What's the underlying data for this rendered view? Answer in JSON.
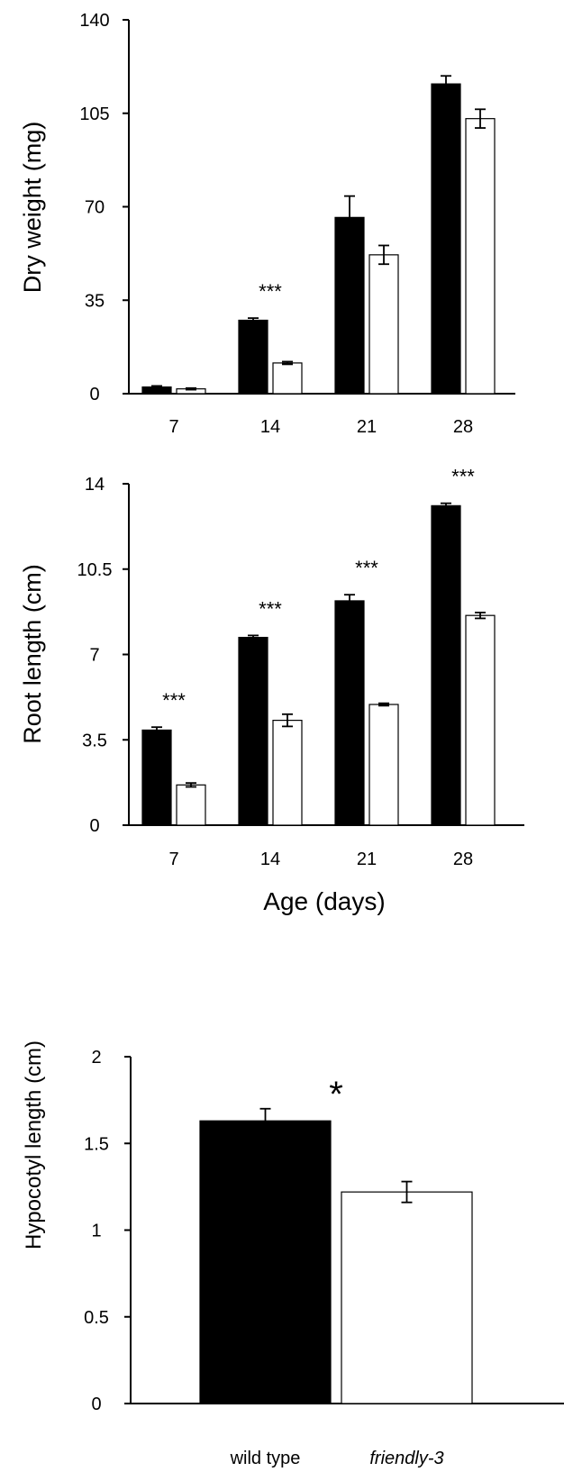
{
  "colors": {
    "series_1": "#000000",
    "series_2": "#ffffff",
    "outline": "#000000"
  },
  "chart_data": [
    {
      "type": "bar",
      "categories": [
        "7",
        "14",
        "21",
        "28"
      ],
      "series": [
        {
          "values": [
            2.5,
            27.5,
            66,
            116
          ],
          "errors": [
            0.4,
            0.8,
            8,
            3
          ]
        },
        {
          "values": [
            1.8,
            11.5,
            52,
            103
          ],
          "errors": [
            0.3,
            0.5,
            3.5,
            3.5
          ]
        }
      ],
      "xlabel": "",
      "ylabel": "Dry weight (mg)",
      "ylim": [
        0,
        140
      ],
      "yticks": [
        "0",
        "35",
        "70",
        "105",
        "140"
      ],
      "annotations": [
        {
          "category": "14",
          "text": "***"
        }
      ],
      "legend": "none",
      "grid": false
    },
    {
      "type": "bar",
      "categories": [
        "7",
        "14",
        "21",
        "28"
      ],
      "series": [
        {
          "values": [
            3.9,
            7.7,
            9.2,
            13.1
          ],
          "errors": [
            0.12,
            0.08,
            0.25,
            0.1
          ]
        },
        {
          "values": [
            1.65,
            4.3,
            4.95,
            8.6
          ],
          "errors": [
            0.08,
            0.25,
            0.05,
            0.12
          ]
        }
      ],
      "xlabel": "Age (days)",
      "ylabel": "Root length (cm)",
      "ylim": [
        0,
        14
      ],
      "yticks": [
        "0",
        "3.5",
        "7",
        "10.5",
        "14"
      ],
      "annotations": [
        {
          "category": "7",
          "text": "***"
        },
        {
          "category": "14",
          "text": "***"
        },
        {
          "category": "21",
          "text": "***"
        },
        {
          "category": "28",
          "text": "***"
        }
      ],
      "legend": "none",
      "grid": false
    },
    {
      "type": "bar",
      "categories": [
        "wild type",
        "friendly-3"
      ],
      "values": [
        1.63,
        1.22
      ],
      "errors": [
        0.07,
        0.06
      ],
      "xlabel": "",
      "ylabel": "Hypocotyl length (cm)",
      "ylim": [
        0,
        2
      ],
      "yticks": [
        "0",
        "0.5",
        "1",
        "1.5",
        "2"
      ],
      "annotations": [
        {
          "text": "*"
        }
      ],
      "legend": "none",
      "grid": false
    }
  ]
}
